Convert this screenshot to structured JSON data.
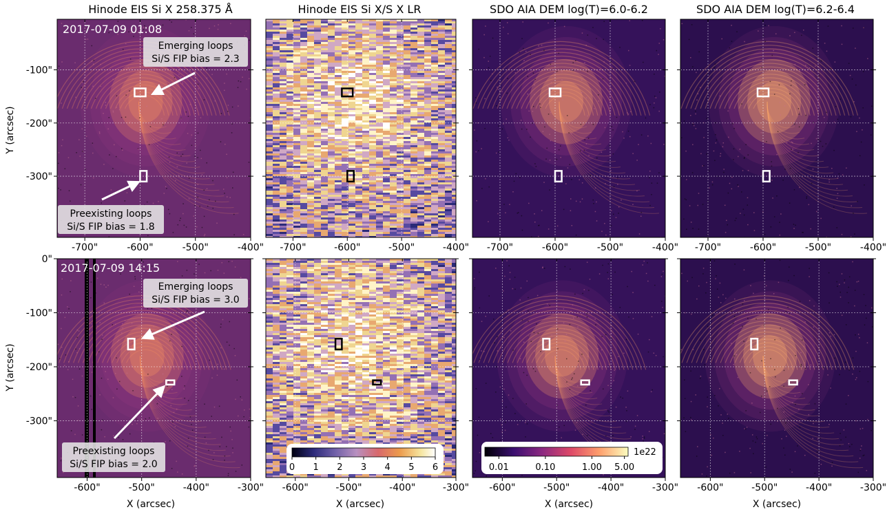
{
  "figure": {
    "column_titles": [
      "Hinode EIS Si X 258.375 Å",
      "Hinode EIS Si X/S X LR",
      "SDO AIA DEM log(T)=6.0-6.2",
      "SDO AIA DEM log(T)=6.2-6.4"
    ],
    "ylabel": "Y (arcsec)",
    "xlabel": "X (arcsec)",
    "rows": [
      {
        "timestamp": "2017-07-09 01:08",
        "emerging": {
          "title": "Emerging loops",
          "fip": "Si/S FIP bias = 2.3"
        },
        "preexisting": {
          "title": "Preexisting loops",
          "fip": "Si/S FIP bias = 1.8"
        },
        "x_ticks": [
          "-700\"",
          "-600\"",
          "-500\"",
          "-400\""
        ],
        "x_tick_values": [
          -700,
          -600,
          -500,
          -400
        ],
        "x_range": [
          -750,
          -400
        ],
        "y_ticks": [
          "-100\"",
          "-200\"",
          "-300\""
        ],
        "y_tick_values": [
          -100,
          -200,
          -300
        ],
        "y_range": [
          -415,
          -5
        ],
        "box_emerging": {
          "x": [
            -610,
            -590
          ],
          "y": [
            -150,
            -135
          ]
        },
        "box_preexisting": {
          "x": [
            -600,
            -588
          ],
          "y": [
            -310,
            -290
          ]
        }
      },
      {
        "timestamp": "2017-07-09 14:15",
        "emerging": {
          "title": "Emerging loops",
          "fip": "Si/S FIP bias = 3.0"
        },
        "preexisting": {
          "title": "Preexisting loops",
          "fip": "Si/S FIP bias = 2.0"
        },
        "x_ticks": [
          "-600\"",
          "-500\"",
          "-400\"",
          "-300\""
        ],
        "x_tick_values": [
          -600,
          -500,
          -400,
          -300
        ],
        "x_range": [
          -655,
          -300
        ],
        "y_ticks": [
          "0\"",
          "-100\"",
          "-200\"",
          "-300\""
        ],
        "y_tick_values": [
          0,
          -100,
          -200,
          -300
        ],
        "y_range": [
          -405,
          0
        ],
        "box_emerging": {
          "x": [
            -525,
            -513
          ],
          "y": [
            -168,
            -148
          ]
        },
        "box_preexisting": {
          "x": [
            -455,
            -440
          ],
          "y": [
            -233,
            -225
          ]
        }
      }
    ],
    "colorbar_fip": {
      "ticks": [
        "0",
        "1",
        "2",
        "3",
        "4",
        "5",
        "6"
      ]
    },
    "colorbar_dem": {
      "ticks": [
        "0.01",
        "0.10",
        "1.00",
        "5.00"
      ],
      "scale_label": "1e22"
    },
    "colors": {
      "magma": [
        "#000004",
        "#1c1044",
        "#4f127b",
        "#812581",
        "#b5367a",
        "#e55964",
        "#fb8761",
        "#fec287",
        "#fcfdbf"
      ],
      "ratio_map": [
        "#1e1e6e",
        "#4b3c96",
        "#8c64b4",
        "#c8a0c8",
        "#e6b478",
        "#ebd28c",
        "#fff0b4",
        "#ffffff"
      ]
    }
  }
}
